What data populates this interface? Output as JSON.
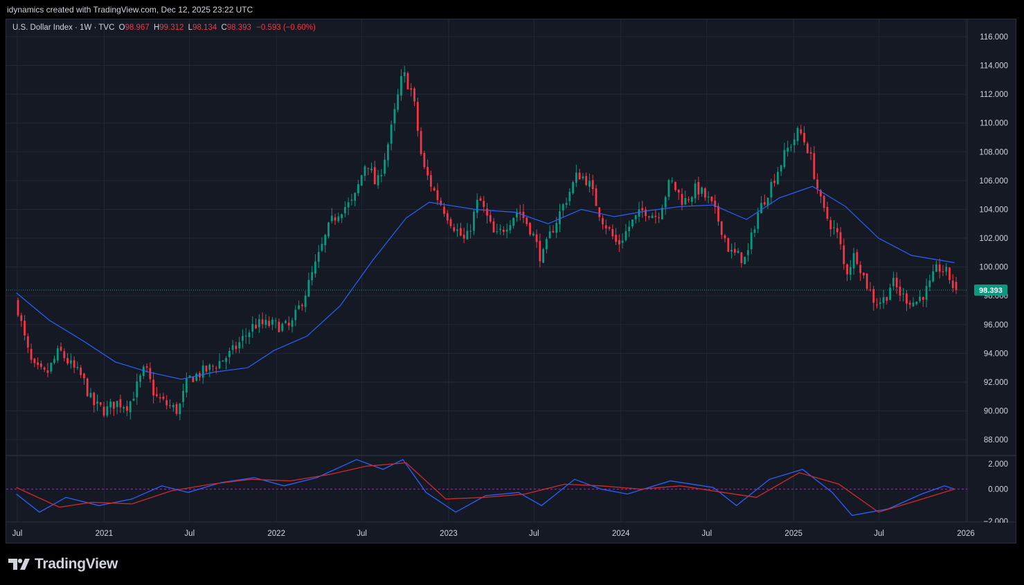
{
  "header": {
    "caption": "idynamics created with TradingView.com, Dec 12, 2025 23:22 UTC"
  },
  "legend": {
    "symbol": "U.S. Dollar Index · 1W · TVC",
    "o_label": "O",
    "o_value": "98.967",
    "h_label": "H",
    "h_value": "99.312",
    "l_label": "L",
    "l_value": "98.134",
    "c_label": "C",
    "c_value": "98.393",
    "change": "−0.593 (−0.60%)"
  },
  "last_price_label": "98.393",
  "brand": {
    "name": "TradingView"
  },
  "colors": {
    "background": "#151924",
    "grid": "#232734",
    "up": "#089981",
    "down": "#f23645",
    "ma": "#2962ff",
    "signal": "#d42a2a",
    "last_price_bg": "#089981"
  },
  "chart_data": {
    "type": "candlestick",
    "instrument": "U.S. Dollar Index",
    "interval": "1W",
    "source": "TVC",
    "x_tick_labels": [
      "Jul",
      "2021",
      "Jul",
      "2022",
      "Jul",
      "2023",
      "Jul",
      "2024",
      "Jul",
      "2025",
      "Jul",
      "2026"
    ],
    "price_axis": {
      "ticks": [
        "116.000",
        "114.000",
        "112.000",
        "110.000",
        "108.000",
        "106.000",
        "104.000",
        "102.000",
        "100.000",
        "98.000",
        "96.000",
        "94.000",
        "92.000",
        "90.000",
        "88.000"
      ],
      "range": [
        86.9,
        117.2
      ]
    },
    "oscillator_axis": {
      "ticks": [
        "2.000",
        "0.000",
        "−2.000"
      ],
      "range": [
        -2.0,
        2.0
      ]
    },
    "last_price": 98.393,
    "price_path": [
      [
        "2020-06-29",
        97.6
      ],
      [
        "2020-07-20",
        94.5
      ],
      [
        "2020-08-03",
        93.0
      ],
      [
        "2020-08-31",
        92.5
      ],
      [
        "2020-09-28",
        94.2
      ],
      [
        "2020-10-26",
        93.0
      ],
      [
        "2020-11-16",
        92.3
      ],
      [
        "2020-12-07",
        90.5
      ],
      [
        "2021-01-04",
        90.0
      ],
      [
        "2021-01-25",
        90.6
      ],
      [
        "2021-02-22",
        90.4
      ],
      [
        "2021-03-29",
        93.0
      ],
      [
        "2021-04-19",
        91.0
      ],
      [
        "2021-05-10",
        90.5
      ],
      [
        "2021-06-07",
        90.0
      ],
      [
        "2021-06-28",
        92.2
      ],
      [
        "2021-08-16",
        93.0
      ],
      [
        "2021-09-27",
        94.0
      ],
      [
        "2021-11-15",
        96.0
      ],
      [
        "2021-12-20",
        96.0
      ],
      [
        "2022-01-31",
        95.8
      ],
      [
        "2022-03-07",
        98.5
      ],
      [
        "2022-04-25",
        103.0
      ],
      [
        "2022-05-16",
        104.0
      ],
      [
        "2022-06-13",
        104.5
      ],
      [
        "2022-07-11",
        107.5
      ],
      [
        "2022-08-01",
        105.5
      ],
      [
        "2022-08-29",
        109.0
      ],
      [
        "2022-09-26",
        113.5
      ],
      [
        "2022-10-17",
        112.0
      ],
      [
        "2022-11-07",
        107.0
      ],
      [
        "2022-12-05",
        105.0
      ],
      [
        "2023-01-09",
        103.0
      ],
      [
        "2023-02-06",
        101.7
      ],
      [
        "2023-03-06",
        104.8
      ],
      [
        "2023-04-10",
        102.0
      ],
      [
        "2023-05-29",
        104.0
      ],
      [
        "2023-06-26",
        102.5
      ],
      [
        "2023-07-17",
        100.5
      ],
      [
        "2023-08-07",
        102.5
      ],
      [
        "2023-09-11",
        105.0
      ],
      [
        "2023-10-02",
        106.5
      ],
      [
        "2023-10-23",
        106.0
      ],
      [
        "2023-11-20",
        103.5
      ],
      [
        "2023-12-25",
        101.5
      ],
      [
        "2024-01-22",
        103.0
      ],
      [
        "2024-02-19",
        104.0
      ],
      [
        "2024-03-18",
        103.5
      ],
      [
        "2024-04-15",
        106.0
      ],
      [
        "2024-05-13",
        104.5
      ],
      [
        "2024-06-10",
        105.5
      ],
      [
        "2024-07-08",
        104.5
      ],
      [
        "2024-07-29",
        103.0
      ],
      [
        "2024-08-19",
        101.0
      ],
      [
        "2024-09-23",
        100.5
      ],
      [
        "2024-10-14",
        103.5
      ],
      [
        "2024-11-04",
        105.0
      ],
      [
        "2024-11-25",
        106.5
      ],
      [
        "2024-12-16",
        108.0
      ],
      [
        "2025-01-13",
        109.5
      ],
      [
        "2025-02-03",
        108.0
      ],
      [
        "2025-03-03",
        104.0
      ],
      [
        "2025-04-07",
        102.0
      ],
      [
        "2025-04-21",
        99.5
      ],
      [
        "2025-05-12",
        101.0
      ],
      [
        "2025-06-02",
        99.0
      ],
      [
        "2025-06-23",
        97.5
      ],
      [
        "2025-07-14",
        97.8
      ],
      [
        "2025-07-28",
        99.0
      ],
      [
        "2025-08-18",
        98.0
      ],
      [
        "2025-09-15",
        97.5
      ],
      [
        "2025-10-13",
        98.5
      ],
      [
        "2025-11-03",
        100.0
      ],
      [
        "2025-11-24",
        99.5
      ],
      [
        "2025-12-08",
        98.393
      ]
    ],
    "moving_average": [
      [
        "2020-06-29",
        98.2
      ],
      [
        "2020-09-07",
        96.3
      ],
      [
        "2020-11-16",
        94.9
      ],
      [
        "2021-01-25",
        93.4
      ],
      [
        "2021-04-05",
        92.7
      ],
      [
        "2021-06-14",
        92.2
      ],
      [
        "2021-08-23",
        92.7
      ],
      [
        "2021-11-01",
        93.0
      ],
      [
        "2021-12-27",
        94.2
      ],
      [
        "2022-03-07",
        95.2
      ],
      [
        "2022-05-16",
        97.3
      ],
      [
        "2022-07-25",
        100.5
      ],
      [
        "2022-10-03",
        103.4
      ],
      [
        "2022-11-21",
        104.5
      ],
      [
        "2023-02-27",
        104.0
      ],
      [
        "2023-05-22",
        103.8
      ],
      [
        "2023-07-31",
        103.0
      ],
      [
        "2023-10-09",
        104.0
      ],
      [
        "2023-12-18",
        103.5
      ],
      [
        "2024-02-26",
        103.9
      ],
      [
        "2024-05-06",
        104.2
      ],
      [
        "2024-07-15",
        104.3
      ],
      [
        "2024-09-23",
        103.3
      ],
      [
        "2024-12-02",
        104.8
      ],
      [
        "2025-02-10",
        105.6
      ],
      [
        "2025-04-21",
        104.2
      ],
      [
        "2025-06-30",
        102.0
      ],
      [
        "2025-09-08",
        100.8
      ],
      [
        "2025-12-08",
        100.3
      ]
    ],
    "oscillator": {
      "fast": [
        [
          "2020-06-29",
          -0.3
        ],
        [
          "2020-08-17",
          -1.4
        ],
        [
          "2020-10-12",
          -0.5
        ],
        [
          "2020-12-21",
          -1.0
        ],
        [
          "2021-03-01",
          -0.6
        ],
        [
          "2021-05-03",
          0.2
        ],
        [
          "2021-06-28",
          -0.2
        ],
        [
          "2021-09-06",
          0.4
        ],
        [
          "2021-11-15",
          0.7
        ],
        [
          "2022-01-17",
          0.2
        ],
        [
          "2022-03-28",
          0.7
        ],
        [
          "2022-06-20",
          1.8
        ],
        [
          "2022-08-15",
          1.2
        ],
        [
          "2022-09-26",
          1.8
        ],
        [
          "2022-11-14",
          -0.2
        ],
        [
          "2023-01-16",
          -1.4
        ],
        [
          "2023-03-20",
          -0.4
        ],
        [
          "2023-05-29",
          -0.2
        ],
        [
          "2023-07-17",
          -1.0
        ],
        [
          "2023-09-25",
          0.6
        ],
        [
          "2023-11-20",
          0.0
        ],
        [
          "2024-01-15",
          -0.3
        ],
        [
          "2024-04-15",
          0.5
        ],
        [
          "2024-07-15",
          0.1
        ],
        [
          "2024-09-02",
          -1.0
        ],
        [
          "2024-11-11",
          0.6
        ],
        [
          "2025-01-20",
          1.2
        ],
        [
          "2025-03-24",
          -0.2
        ],
        [
          "2025-05-05",
          -1.6
        ],
        [
          "2025-07-21",
          -1.2
        ],
        [
          "2025-09-29",
          -0.3
        ],
        [
          "2025-11-17",
          0.2
        ],
        [
          "2025-12-08",
          0.0
        ]
      ],
      "signal": [
        [
          "2020-06-29",
          0.1
        ],
        [
          "2020-09-28",
          -1.1
        ],
        [
          "2020-12-07",
          -0.8
        ],
        [
          "2021-03-01",
          -0.9
        ],
        [
          "2021-05-24",
          -0.1
        ],
        [
          "2021-08-16",
          0.3
        ],
        [
          "2021-11-08",
          0.6
        ],
        [
          "2022-01-31",
          0.5
        ],
        [
          "2022-04-25",
          0.9
        ],
        [
          "2022-07-11",
          1.4
        ],
        [
          "2022-10-03",
          1.6
        ],
        [
          "2022-12-26",
          -0.6
        ],
        [
          "2023-03-20",
          -0.5
        ],
        [
          "2023-06-12",
          -0.3
        ],
        [
          "2023-09-04",
          0.3
        ],
        [
          "2023-11-20",
          0.2
        ],
        [
          "2024-02-12",
          0.0
        ],
        [
          "2024-05-06",
          0.2
        ],
        [
          "2024-08-05",
          -0.2
        ],
        [
          "2024-10-14",
          -0.5
        ],
        [
          "2025-01-13",
          1.0
        ],
        [
          "2025-04-07",
          0.3
        ],
        [
          "2025-06-30",
          -1.4
        ],
        [
          "2025-09-08",
          -0.8
        ],
        [
          "2025-12-08",
          0.0
        ]
      ]
    }
  }
}
